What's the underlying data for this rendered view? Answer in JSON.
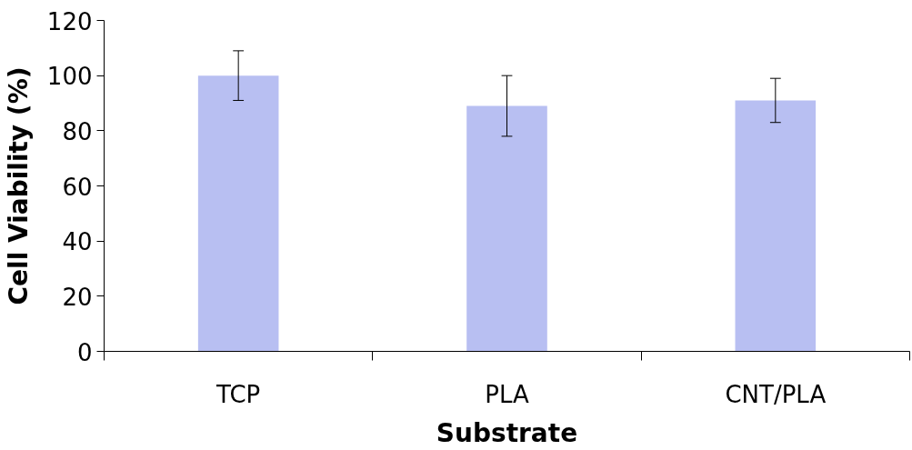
{
  "chart_data": {
    "type": "bar",
    "xlabel": "Substrate",
    "ylabel": "Cell Viability (%)",
    "categories": [
      "TCP",
      "PLA",
      "CNT/PLA"
    ],
    "values": [
      100,
      89,
      91
    ],
    "errors": [
      9,
      11,
      8
    ],
    "color": "#b8bff2",
    "ylim": [
      0,
      120
    ],
    "yticks": [
      0,
      20,
      40,
      60,
      80,
      100,
      120
    ],
    "grid": false
  }
}
